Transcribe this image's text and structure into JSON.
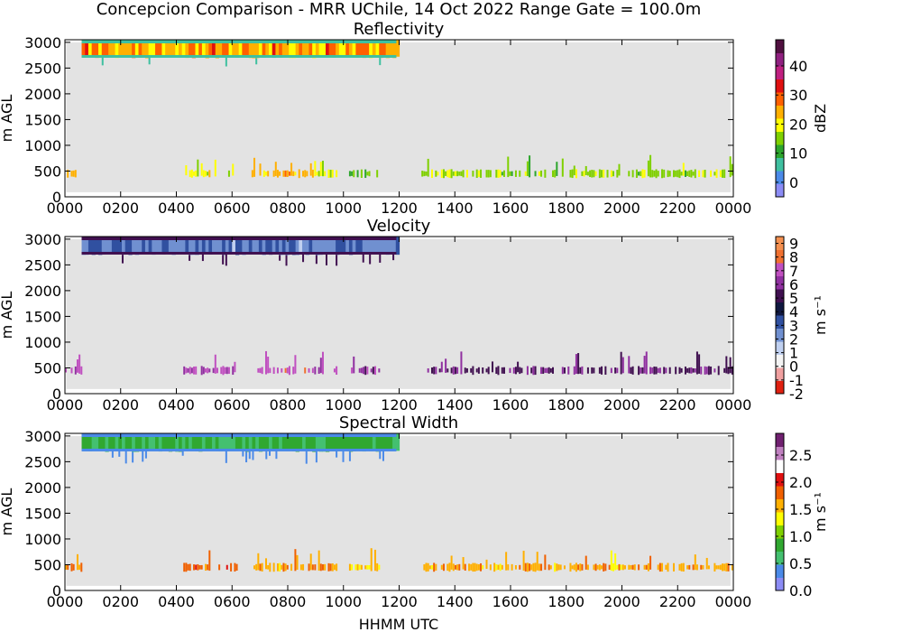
{
  "figure": {
    "suptitle": "Concepcion Comparison - MRR UChile, 14 Oct 2022 Range Gate = 100.0m",
    "xlabel": "HHMM UTC"
  },
  "colors": {
    "nodata_bg": "#e3e3e3"
  },
  "chart_data": [
    {
      "type": "heatmap",
      "title": "Reflectivity",
      "xlabel": "",
      "ylabel": "m AGL",
      "x_ticks": [
        "0000",
        "0200",
        "0400",
        "0600",
        "0800",
        "1000",
        "1200",
        "1400",
        "1600",
        "1800",
        "2000",
        "2200",
        "0000"
      ],
      "y_ticks": [
        "0",
        "500",
        "1000",
        "1500",
        "2000",
        "2500",
        "3000"
      ],
      "xlim_hours": [
        0,
        24
      ],
      "ylim": [
        0,
        3050
      ],
      "colorbar": {
        "label": "dBZ",
        "range": [
          -5,
          49
        ],
        "ticks": [
          "0",
          "10",
          "20",
          "30",
          "40"
        ],
        "tick_values": [
          0,
          10,
          20,
          30,
          40
        ],
        "colors": [
          "#8c8cf5",
          "#4b8ae8",
          "#3fc0a0",
          "#2ca52c",
          "#7fd000",
          "#ffff00",
          "#ffb000",
          "#ff6000",
          "#e01010",
          "#c02080",
          "#902080",
          "#501040"
        ]
      },
      "upper_layer": {
        "start_hour": 0.6,
        "end_hour": 11.9,
        "bottom_m": 2700,
        "top_m": 3050,
        "value_range": [
          18,
          32
        ],
        "edge_value": 5
      },
      "low_layer": {
        "center_m": 450,
        "segments_hours": [
          [
            0,
            0.6
          ],
          [
            4.25,
            6.2
          ],
          [
            6.7,
            8.9
          ],
          [
            8.95,
            9.75
          ],
          [
            10.2,
            11.3
          ],
          [
            12.8,
            24
          ]
        ],
        "values": [
          22,
          20,
          24,
          20,
          14,
          16
        ]
      }
    },
    {
      "type": "heatmap",
      "title": "Velocity",
      "xlabel": "",
      "ylabel": "m AGL",
      "x_ticks": [
        "0000",
        "0200",
        "0400",
        "0600",
        "0800",
        "1000",
        "1200",
        "1400",
        "1600",
        "1800",
        "2000",
        "2200",
        "0000"
      ],
      "y_ticks": [
        "0",
        "500",
        "1000",
        "1500",
        "2000",
        "2500",
        "3000"
      ],
      "xlim_hours": [
        0,
        24
      ],
      "ylim": [
        0,
        3050
      ],
      "colorbar": {
        "label": "m s⁻¹",
        "range": [
          -2,
          9.5
        ],
        "ticks": [
          "-2",
          "-1",
          "0",
          "1",
          "2",
          "3",
          "4",
          "5",
          "6",
          "7",
          "8",
          "9"
        ],
        "tick_values": [
          -2,
          -1,
          0,
          1,
          2,
          3,
          4,
          5,
          6,
          7,
          8,
          9
        ],
        "colors": [
          "#e02010",
          "#f0a0a0",
          "#f4f4f4",
          "#c0d0f0",
          "#7090d0",
          "#3050a0",
          "#101840",
          "#401050",
          "#9030a0",
          "#c050c0",
          "#f07030",
          "#f49050"
        ]
      },
      "upper_layer": {
        "start_hour": 0.6,
        "end_hour": 11.9,
        "bottom_m": 2700,
        "top_m": 3050,
        "value_range": [
          1.8,
          3.4
        ],
        "edge_value": 5.5
      },
      "low_layer": {
        "center_m": 450,
        "segments_hours": [
          [
            0,
            0.6
          ],
          [
            4.25,
            6.2
          ],
          [
            6.7,
            8.9
          ],
          [
            8.95,
            9.75
          ],
          [
            10.2,
            11.3
          ],
          [
            12.8,
            24
          ]
        ],
        "values": [
          7,
          6.5,
          7.5,
          6.5,
          6,
          5.5
        ]
      }
    },
    {
      "type": "heatmap",
      "title": "Spectral Width",
      "xlabel": "HHMM UTC",
      "ylabel": "m AGL",
      "x_ticks": [
        "0000",
        "0200",
        "0400",
        "0600",
        "0800",
        "1000",
        "1200",
        "1400",
        "1600",
        "1800",
        "2000",
        "2200",
        "0000"
      ],
      "y_ticks": [
        "0",
        "500",
        "1000",
        "1500",
        "2000",
        "2500",
        "3000"
      ],
      "xlim_hours": [
        0,
        24
      ],
      "ylim": [
        0,
        3050
      ],
      "colorbar": {
        "label": "m s⁻¹",
        "range": [
          0,
          2.9
        ],
        "ticks": [
          "0.0",
          "0.5",
          "1.0",
          "1.5",
          "2.0",
          "2.5"
        ],
        "tick_values": [
          0,
          0.5,
          1.0,
          1.5,
          2.0,
          2.5
        ],
        "colors": [
          "#8c8cf5",
          "#4b8ae8",
          "#44c070",
          "#30a830",
          "#7fd000",
          "#ffff00",
          "#ffb000",
          "#f06000",
          "#e01010",
          "#ffffff",
          "#c080c0",
          "#702070"
        ]
      },
      "upper_layer": {
        "start_hour": 0.6,
        "end_hour": 11.9,
        "bottom_m": 2700,
        "top_m": 3050,
        "value_range": [
          0.6,
          0.95
        ],
        "edge_value": 0.3
      },
      "low_layer": {
        "center_m": 450,
        "segments_hours": [
          [
            0,
            0.6
          ],
          [
            4.25,
            6.2
          ],
          [
            6.7,
            8.9
          ],
          [
            8.95,
            9.75
          ],
          [
            10.2,
            11.3
          ],
          [
            12.8,
            24
          ]
        ],
        "values": [
          1.7,
          1.8,
          1.6,
          1.7,
          1.5,
          1.6
        ]
      }
    }
  ]
}
